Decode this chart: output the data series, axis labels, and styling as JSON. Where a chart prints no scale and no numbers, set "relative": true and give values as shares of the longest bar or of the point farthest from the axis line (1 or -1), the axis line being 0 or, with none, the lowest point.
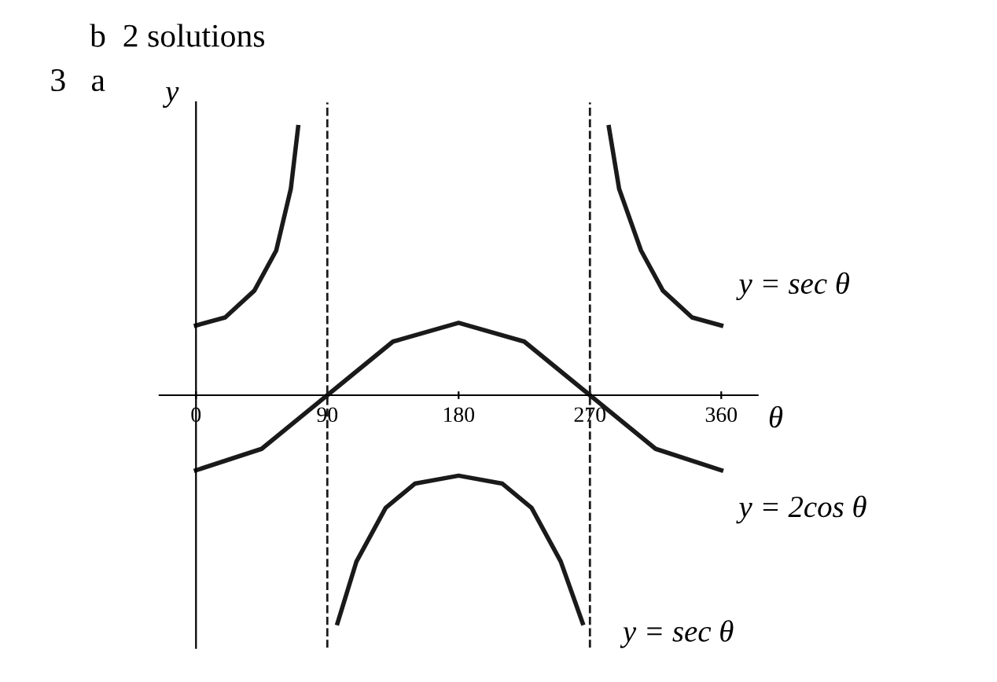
{
  "chart_data": {
    "type": "line",
    "relative": true,
    "xlabel": "θ",
    "ylabel": "y",
    "xlim": [
      -25,
      385
    ],
    "xticks": [
      0,
      90,
      180,
      270,
      360
    ],
    "tick_labels": "x",
    "grid": false,
    "legend": false,
    "marker": "none",
    "line_style": "solid",
    "series": [
      {
        "name": "y = sec θ",
        "color": "#1a1a1a",
        "x": [
          0,
          20,
          40,
          55,
          65,
          70,
          90,
          97,
          110,
          130,
          150,
          180,
          210,
          230,
          250,
          265,
          270,
          283,
          290,
          305,
          320,
          340,
          360
        ],
        "values": [
          0.26,
          0.29,
          0.39,
          0.54,
          0.77,
          1.0,
          null,
          -0.85,
          -0.62,
          -0.42,
          -0.33,
          -0.3,
          -0.33,
          -0.42,
          -0.62,
          -0.85,
          null,
          1.0,
          0.77,
          0.54,
          0.39,
          0.29,
          0.26
        ]
      },
      {
        "name": "y = 2cos θ",
        "color": "#1a1a1a",
        "x": [
          0,
          45,
          90,
          135,
          180,
          225,
          270,
          315,
          360
        ],
        "values": [
          -0.28,
          -0.2,
          0,
          0.2,
          0.27,
          0.2,
          0,
          -0.2,
          -0.28
        ]
      }
    ],
    "ref_lines": [
      {
        "axis": "x",
        "value": 90,
        "line_style": "dashed",
        "color": "#1a1a1a"
      },
      {
        "axis": "x",
        "value": 270,
        "line_style": "dashed",
        "color": "#1a1a1a"
      }
    ],
    "annotations": [
      "b  2 solutions",
      "3   a",
      {
        "text": "y = sec θ",
        "x": 270,
        "y": -0.85
      }
    ]
  }
}
